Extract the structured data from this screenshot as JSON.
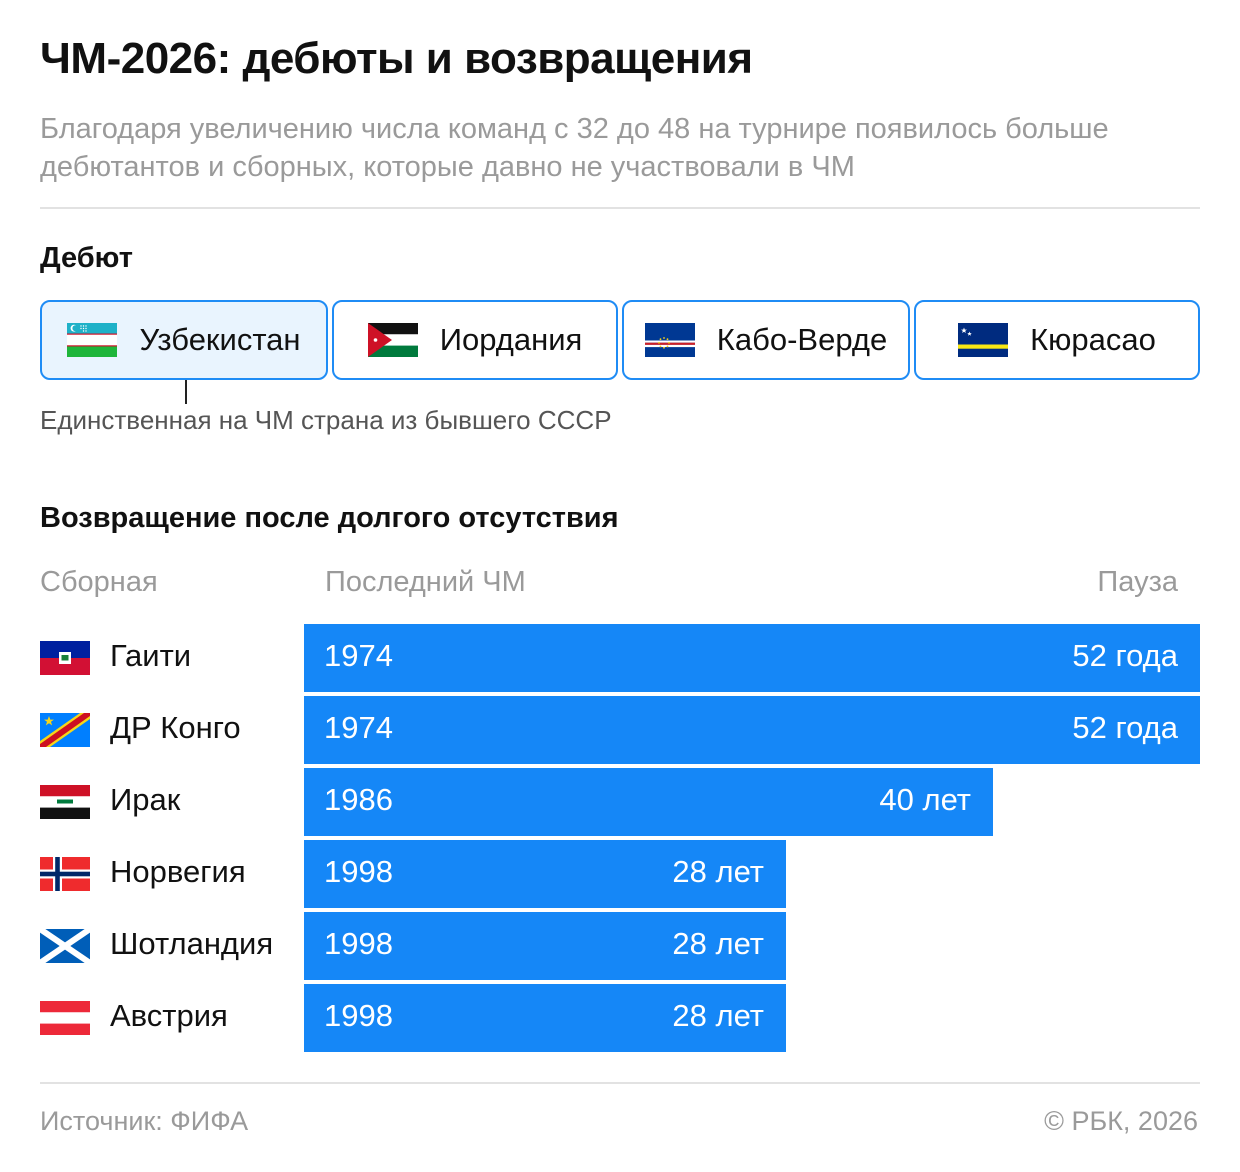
{
  "title": "ЧМ-2026: дебюты и возвращения",
  "subtitle": "Благодаря увеличению числа команд с 32 до 48 на турнире появилось больше дебютантов и сборных, которые давно не участвовали в ЧМ",
  "debut": {
    "heading": "Дебют",
    "teams": [
      {
        "name": "Узбекистан",
        "flag": "uzbekistan-flag-icon"
      },
      {
        "name": "Иордания",
        "flag": "jordan-flag-icon"
      },
      {
        "name": "Кабо-Верде",
        "flag": "cape-verde-flag-icon"
      },
      {
        "name": "Кюрасао",
        "flag": "curacao-flag-icon"
      }
    ],
    "note": "Единственная на ЧМ страна из бывшего СССР"
  },
  "returns": {
    "heading": "Возвращение после долгого отсутствия",
    "col_team": "Сборная",
    "col_last": "Последний ЧМ",
    "col_pause": "Пауза"
  },
  "chart_data": {
    "type": "bar",
    "orientation": "horizontal",
    "categories": [
      "Гаити",
      "ДР Конго",
      "Ирак",
      "Норвегия",
      "Шотландия",
      "Австрия"
    ],
    "last_world_cup": [
      "1974",
      "1974",
      "1986",
      "1998",
      "1998",
      "1998"
    ],
    "values": [
      52,
      52,
      40,
      28,
      28,
      28
    ],
    "value_labels": [
      "52 года",
      "52 года",
      "40 лет",
      "28 лет",
      "28 лет",
      "28 лет"
    ],
    "flags": [
      "haiti-flag-icon",
      "dr-congo-flag-icon",
      "iraq-flag-icon",
      "norway-flag-icon",
      "scotland-flag-icon",
      "austria-flag-icon"
    ],
    "xlim": [
      0,
      52
    ],
    "color": "#1587f7",
    "grid": false
  },
  "colors": {
    "accent": "#1587f7",
    "card_border": "#1f8cf5",
    "card_active_bg": "#e9f4fe",
    "muted": "#9a9a9a"
  },
  "footer": {
    "source": "Источник: ФИФА",
    "copyright": "© РБК, 2026"
  }
}
